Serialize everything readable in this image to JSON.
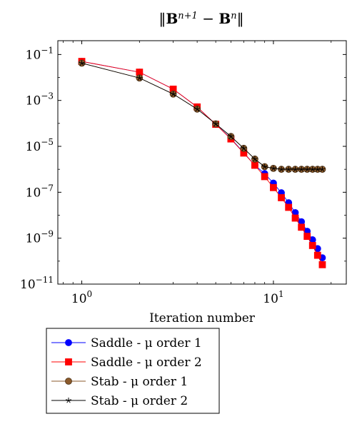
{
  "chart_data": {
    "type": "line",
    "title": "‖B^{n+1} − B^{n}‖",
    "xlabel": "Iteration number",
    "ylabel": "",
    "xscale": "log",
    "yscale": "log",
    "xlim": [
      0.75,
      24
    ],
    "ylim": [
      1e-11,
      0.4
    ],
    "x_ticks": [
      {
        "value": 1,
        "base": "10",
        "exp": "0"
      },
      {
        "value": 10,
        "base": "10",
        "exp": "1"
      }
    ],
    "y_ticks": [
      {
        "value": 0.1,
        "base": "10",
        "exp": "−1"
      },
      {
        "value": 0.001,
        "base": "10",
        "exp": "−3"
      },
      {
        "value": 1e-05,
        "base": "10",
        "exp": "−5"
      },
      {
        "value": 1e-07,
        "base": "10",
        "exp": "−7"
      },
      {
        "value": 1e-09,
        "base": "10",
        "exp": "−9"
      },
      {
        "value": 1e-11,
        "base": "10",
        "exp": "−11"
      }
    ],
    "legend_position": "below",
    "series": [
      {
        "name": "Saddle - μ order 1",
        "color": "#0000ff",
        "marker": "circle",
        "x": [
          1,
          2,
          3,
          4,
          5,
          6,
          7,
          8,
          9,
          10,
          11,
          12,
          13,
          14,
          15,
          16,
          17,
          18
        ],
        "y": [
          0.05,
          0.017,
          0.0031,
          0.00052,
          9.1e-05,
          2.2e-05,
          5.3e-06,
          1.5e-06,
          6.5e-07,
          2.5e-07,
          9.5e-08,
          3.5e-08,
          1.3e-08,
          5.2e-09,
          2e-09,
          8.5e-10,
          3.5e-10,
          1.4e-10
        ]
      },
      {
        "name": "Saddle - μ order 2",
        "color": "#ff0000",
        "marker": "square",
        "x": [
          1,
          2,
          3,
          4,
          5,
          6,
          7,
          8,
          9,
          10,
          11,
          12,
          13,
          14,
          15,
          16,
          17,
          18
        ],
        "y": [
          0.05,
          0.017,
          0.0031,
          0.00052,
          9.1e-05,
          2.1e-05,
          5.1e-06,
          1.5e-06,
          4.8e-07,
          1.6e-07,
          5.8e-08,
          2.2e-08,
          7.5e-09,
          3e-09,
          1.2e-09,
          4.8e-10,
          1.8e-10,
          7e-11
        ]
      },
      {
        "name": "Stab - μ order 1",
        "color": "#8b5a2b",
        "marker": "circle-filled",
        "x": [
          1,
          2,
          3,
          4,
          5,
          6,
          7,
          8,
          9,
          10,
          11,
          12,
          13,
          14,
          15,
          16,
          17,
          18
        ],
        "y": [
          0.042,
          0.0095,
          0.0019,
          0.00042,
          9.5e-05,
          2.7e-05,
          8.2e-06,
          2.8e-06,
          1.3e-06,
          1.1e-06,
          1e-06,
          1e-06,
          1e-06,
          1e-06,
          1e-06,
          1e-06,
          1e-06,
          1e-06
        ]
      },
      {
        "name": "Stab - μ order 2",
        "color": "#000000",
        "marker": "star",
        "x": [
          1,
          2,
          3,
          4,
          5,
          6,
          7,
          8,
          9,
          10,
          11,
          12,
          13,
          14,
          15,
          16,
          17,
          18
        ],
        "y": [
          0.042,
          0.0095,
          0.0019,
          0.00042,
          9.5e-05,
          2.7e-05,
          8.2e-06,
          2.8e-06,
          1.3e-06,
          1.1e-06,
          1e-06,
          1e-06,
          1e-06,
          1e-06,
          1e-06,
          1e-06,
          1e-06,
          1e-06
        ]
      }
    ]
  }
}
